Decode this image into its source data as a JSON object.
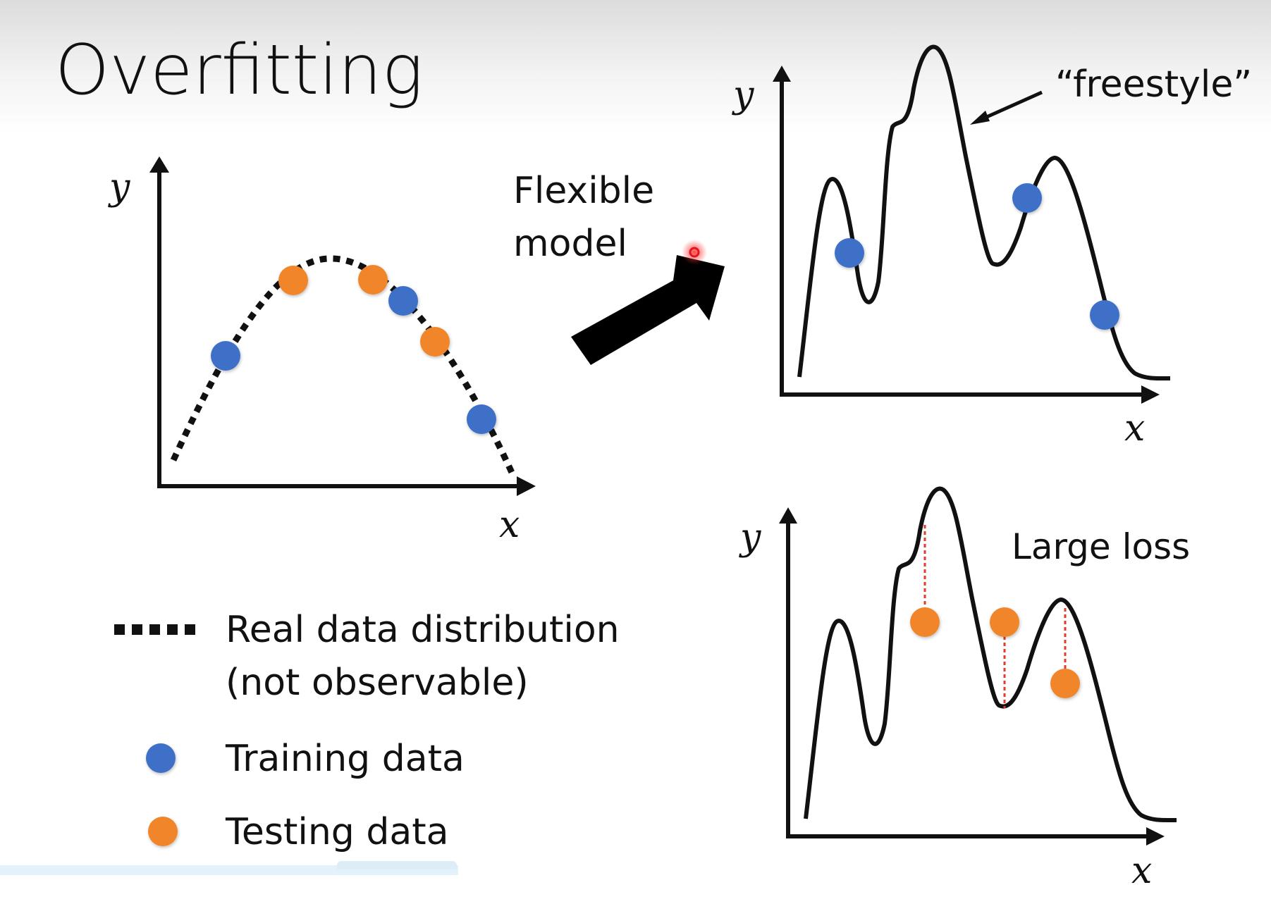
{
  "title": "Overfitting",
  "left_plot": {
    "y_label": "y",
    "x_label": "x"
  },
  "arrow_label": [
    "Flexible",
    "model"
  ],
  "top_right_plot": {
    "y_label": "y",
    "x_label": "x",
    "annotation": "“freestyle”"
  },
  "bottom_right_plot": {
    "y_label": "y",
    "x_label": "x",
    "annotation": "Large loss"
  },
  "legend": {
    "real_line1": "Real data distribution",
    "real_line2": "(not observable)",
    "training": "Training data",
    "testing": "Testing data"
  },
  "colors": {
    "training": "#3e70c6",
    "testing": "#f0852a",
    "loss_line": "#e23b2c",
    "pointer": "#e0171c",
    "ink": "#111111"
  }
}
